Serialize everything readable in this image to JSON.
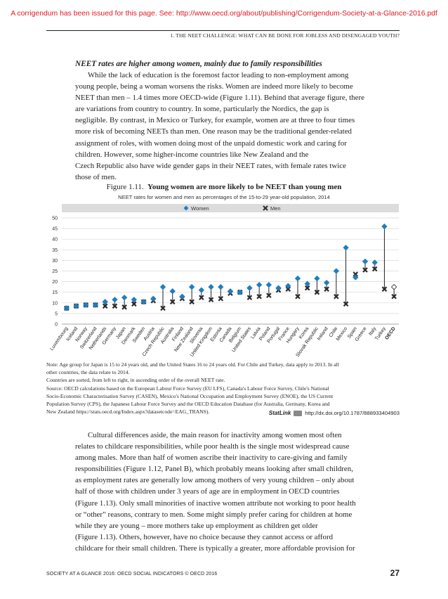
{
  "corrigendum": "A corrigendum has been issued for this page. See: http://www.oecd.org/about/publishing/Corrigendum-Society-at-a-Glance-2016.pdf",
  "running_header": "1.   THE NEET CHALLENGE: WHAT CAN BE DONE FOR JOBLESS AND DISENGAGED YOUTH?",
  "section_title": "NEET rates are higher among women, mainly due to family responsibilities",
  "paragraph1": [
    "While the lack of education is the foremost factor leading to non-employment among",
    "young people, being a woman worsens the risks. Women are indeed more likely to become",
    "NEET than men – 1.4 times more OECD-wide (Figure 1.11). Behind that average figure, there",
    "are variations from country to country. In some, particularly the Nordics, the gap is",
    "negligible. By contrast, in Mexico or Turkey, for example, women are at three to four times",
    "more risk of becoming NEETs than men. One reason may be the traditional gender-related",
    "assignment of roles, with women doing most of the unpaid domestic work and caring for",
    "children. However, some higher-income countries like New Zealand and the",
    "Czech Republic also have wide gender gaps in their NEET rates, with female rates twice",
    "those of men."
  ],
  "figure": {
    "number": "Figure 1.11.",
    "title": "Young women are more likely to be NEET than young men",
    "subtitle": "NEET rates for women and men as percentages of the 15-to-29 year-old population, 2014"
  },
  "chart_data": {
    "type": "scatter",
    "legend": [
      "Women",
      "Men"
    ],
    "legend_position": "top",
    "ylim": [
      0,
      50
    ],
    "yticks": [
      0,
      5,
      10,
      15,
      20,
      25,
      30,
      35,
      40,
      45,
      50
    ],
    "grid": true,
    "categories": [
      "Luxembourg",
      "Iceland",
      "Norway",
      "Switzerland",
      "Netherlands",
      "Germany",
      "Japan",
      "Denmark",
      "Sweden",
      "Austria",
      "Czech Republic",
      "Australia",
      "Finland",
      "New Zealand",
      "Slovenia",
      "United Kingdom",
      "Estonia",
      "Canada",
      "Belgium",
      "United States",
      "Latvia",
      "Poland",
      "Portugal",
      "France",
      "Hungary",
      "Korea",
      "Slovak Republic",
      "Ireland",
      "Chile",
      "Mexico",
      "Spain",
      "Greece",
      "Italy",
      "Turkey",
      "OECD"
    ],
    "series": [
      {
        "name": "Women",
        "values": [
          7.5,
          8.5,
          9,
          9,
          10.5,
          11.5,
          12.5,
          11.5,
          10.5,
          12,
          17.5,
          15.5,
          13,
          17.5,
          16,
          17.5,
          17.5,
          15.5,
          15,
          17,
          18.5,
          18.5,
          17,
          18,
          21.5,
          19,
          21.5,
          19.5,
          25,
          36,
          22,
          29.5,
          29,
          46,
          17.5
        ],
        "color": "#1f7ec0"
      },
      {
        "name": "Men",
        "values": [
          7.5,
          8.5,
          9,
          9,
          8.5,
          8.5,
          8,
          9.5,
          10.5,
          11,
          7.5,
          10.5,
          12,
          10.5,
          12.5,
          11.5,
          12,
          14.5,
          15,
          12.5,
          13,
          13.5,
          16,
          16.5,
          13,
          17,
          15,
          16.5,
          13,
          9.5,
          23.5,
          25.5,
          26,
          16.5,
          13
        ],
        "color": "#2b2b2b"
      }
    ]
  },
  "notes": [
    "Note: Age group for Japan is 15 to 24 years old, and the United States 16 to 24 years old. For Chile and Turkey, data apply to 2013. In all",
    "other countries, the data relate to 2014.",
    "Countries are sorted, from left to right, in ascending order of the overall NEET rate.",
    "Source: OECD calculations based on the European Labour Force Survey (EU LFS), Canada's Labour Force Survey, Chile's National",
    "Socio-Economic Characterisation Survey (CASEN), Mexico's National Occupation and Employment Survey (ENOE), the US Current",
    "Population Survey (CPS), the Japanese Labour Force Survey and the OECD Education Database (for Australia, Germany, Korea and",
    "New Zealand https://stats.oecd.org/Index.aspx?datasetcode=EAG_TRANS)."
  ],
  "statlink": {
    "label": "StatLink",
    "url": "http://dx.doi.org/10.1787/888933404903"
  },
  "paragraph2": [
    "Cultural differences aside, the main reason for inactivity among women most often",
    "relates to childcare responsibilities, while poor health is the single most widespread cause",
    "among males. More than half of women ascribe their inactivity to care-giving and family",
    "responsibilities (Figure 1.12, Panel B), which probably means looking after small children,",
    "as employment rates are generally low among mothers of very young children – only about",
    "half of those with children under 3 years of age are in employment in OECD countries",
    "(Figure 1.13). Only small minorities of inactive women attribute not working to poor health",
    "or “other” reasons, contrary to men. Some might simply prefer caring for children at home",
    "while they are young – more mothers take up employment as children get older",
    "(Figure 1.13). Others, however, have no choice because they cannot access or afford",
    "childcare for their small children. There is typically a greater, more affordable provision for"
  ],
  "footer": {
    "left": "SOCIETY AT A GLANCE 2016: OECD SOCIAL INDICATORS © OECD 2016",
    "page": "27"
  }
}
